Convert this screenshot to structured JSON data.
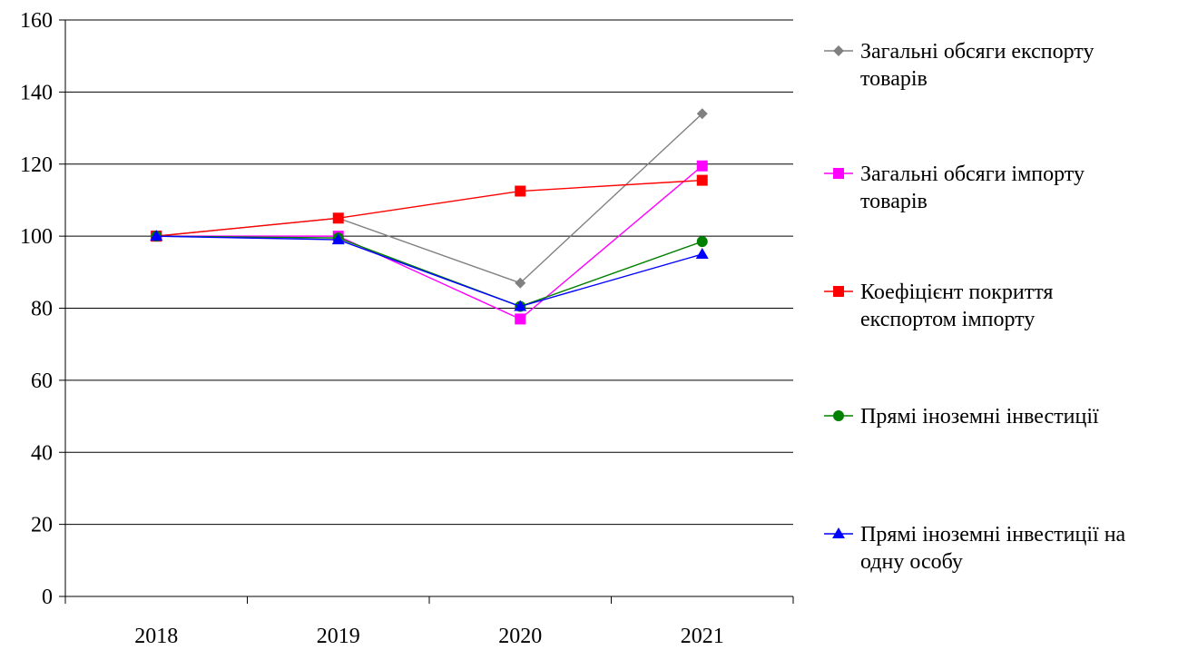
{
  "chart_data": {
    "type": "line",
    "categories": [
      "2018",
      "2019",
      "2020",
      "2021"
    ],
    "ylim": [
      0,
      160
    ],
    "y_ticks": [
      0,
      20,
      40,
      60,
      80,
      100,
      120,
      140,
      160
    ],
    "grid": true,
    "legend_position": "right",
    "series": [
      {
        "name": "Загальні обсяги експорту товарів",
        "legend_lines": [
          "Загальні обсяги експорту",
          "товарів"
        ],
        "values": [
          100,
          105,
          87,
          134
        ],
        "color": "#808080",
        "marker": "diamond"
      },
      {
        "name": "Загальні обсяги імпорту товарів",
        "legend_lines": [
          "Загальні обсяги імпорту",
          "товарів"
        ],
        "values": [
          100,
          100,
          77,
          119.5
        ],
        "color": "#ff00ff",
        "marker": "square"
      },
      {
        "name": "Коефіцієнт покриття експортом імпорту",
        "legend_lines": [
          "Коефіцієнт покриття",
          "експортом імпорту"
        ],
        "values": [
          100,
          105,
          112.5,
          115.5
        ],
        "color": "#ff0000",
        "marker": "square"
      },
      {
        "name": "Прямі іноземні інвестиції",
        "legend_lines": [
          "Прямі іноземні інвестиції"
        ],
        "values": [
          100,
          99.5,
          80.5,
          98.5
        ],
        "color": "#008000",
        "marker": "circle"
      },
      {
        "name": "Прямі іноземні інвестиції на одну особу",
        "legend_lines": [
          "Прямі іноземні інвестиції на",
          "одну особу"
        ],
        "values": [
          100,
          99,
          80.5,
          95
        ],
        "color": "#0000ff",
        "marker": "triangle"
      }
    ]
  }
}
